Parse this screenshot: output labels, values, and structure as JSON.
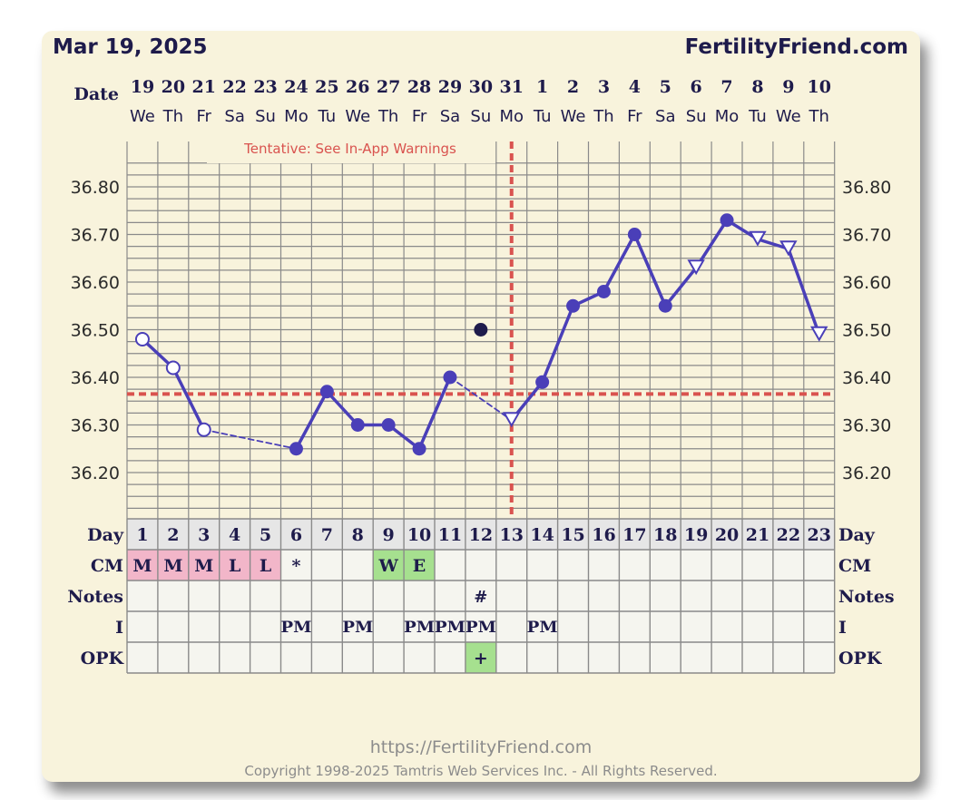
{
  "header": {
    "date": "Mar 19, 2025",
    "brand": "FertilityFriend.com"
  },
  "labels": {
    "date_row": "Date",
    "day_row": "Day",
    "cm_row": "CM",
    "notes_row": "Notes",
    "i_row": "I",
    "opk_row": "OPK"
  },
  "warning": "Tentative: See In-App Warnings",
  "footer": {
    "url": "https://FertilityFriend.com",
    "copyright": "Copyright 1998-2025 Tamtris Web Services Inc. - All Rights Reserved."
  },
  "colors": {
    "line": "#4a3fb8",
    "coverline": "#d9534f",
    "grid": "#8a8a8a",
    "cm_pink": "#f2b6c9",
    "cm_green": "#a6e08f",
    "opk_green": "#a6e08f",
    "text_dark": "#1e1b4b"
  },
  "chart_data": {
    "type": "line",
    "x": [
      1,
      2,
      3,
      4,
      5,
      6,
      7,
      8,
      9,
      10,
      11,
      12,
      13,
      14,
      15,
      16,
      17,
      18,
      19,
      20,
      21,
      22,
      23
    ],
    "dates": [
      "19",
      "20",
      "21",
      "22",
      "23",
      "24",
      "25",
      "26",
      "27",
      "28",
      "29",
      "30",
      "31",
      "1",
      "2",
      "3",
      "4",
      "5",
      "6",
      "7",
      "8",
      "9",
      "10"
    ],
    "weekdays": [
      "We",
      "Th",
      "Fr",
      "Sa",
      "Su",
      "Mo",
      "Tu",
      "We",
      "Th",
      "Fr",
      "Sa",
      "Su",
      "Mo",
      "Tu",
      "We",
      "Th",
      "Fr",
      "Sa",
      "Su",
      "Mo",
      "Tu",
      "We",
      "Th"
    ],
    "yticks": [
      "36.80",
      "36.70",
      "36.60",
      "36.50",
      "36.40",
      "36.30",
      "36.20"
    ],
    "ylim": [
      36.11,
      36.9
    ],
    "coverline": 36.365,
    "ovulation_day": 13,
    "series": [
      {
        "values": [
          36.48,
          36.42,
          36.29,
          null,
          null,
          36.25,
          36.37,
          36.3,
          36.3,
          36.25,
          36.4,
          null,
          36.31,
          36.39,
          36.55,
          36.58,
          36.7,
          36.55,
          36.63,
          36.73,
          36.69,
          36.67,
          36.49
        ],
        "markers": [
          "open-circle",
          "open-circle",
          "open-circle",
          null,
          null,
          "circle",
          "circle",
          "circle",
          "circle",
          "circle",
          "circle",
          null,
          "open-triangle",
          "circle",
          "circle",
          "circle",
          "circle",
          "circle",
          "open-triangle",
          "circle",
          "open-triangle",
          "open-triangle",
          "open-triangle"
        ],
        "dashed_segments": [
          [
            3,
            6
          ],
          [
            11,
            13
          ]
        ]
      }
    ],
    "outlier": {
      "x": 12,
      "y": 36.5
    },
    "rows": {
      "cm": [
        "M",
        "M",
        "M",
        "L",
        "L",
        "*",
        "",
        "",
        "W",
        "E",
        "",
        "",
        "",
        "",
        "",
        "",
        "",
        "",
        "",
        "",
        "",
        "",
        ""
      ],
      "cm_colors": [
        "pink",
        "pink",
        "pink",
        "pink",
        "pink",
        "",
        "",
        "",
        "green",
        "green",
        "",
        "",
        "",
        "",
        "",
        "",
        "",
        "",
        "",
        "",
        "",
        "",
        ""
      ],
      "notes": [
        "",
        "",
        "",
        "",
        "",
        "",
        "",
        "",
        "",
        "",
        "",
        "#",
        "",
        "",
        "",
        "",
        "",
        "",
        "",
        "",
        "",
        "",
        ""
      ],
      "i": [
        "",
        "",
        "",
        "",
        "",
        "PM",
        "",
        "PM",
        "",
        "PM",
        "PM",
        "PM",
        "",
        "PM",
        "",
        "",
        "",
        "",
        "",
        "",
        "",
        "",
        ""
      ],
      "opk": [
        "",
        "",
        "",
        "",
        "",
        "",
        "",
        "",
        "",
        "",
        "",
        "+",
        "",
        "",
        "",
        "",
        "",
        "",
        "",
        "",
        "",
        "",
        ""
      ],
      "opk_colors": [
        "",
        "",
        "",
        "",
        "",
        "",
        "",
        "",
        "",
        "",
        "",
        "green",
        "",
        "",
        "",
        "",
        "",
        "",
        "",
        "",
        "",
        "",
        ""
      ]
    }
  }
}
